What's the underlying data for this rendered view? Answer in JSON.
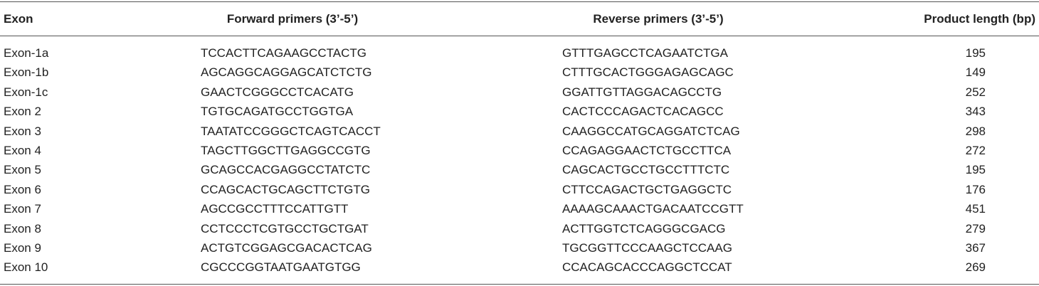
{
  "table": {
    "header": [
      "Exon",
      "Forward primers (3’-5’)",
      "Reverse primers (3’-5’)",
      "Product length (bp)"
    ],
    "rows": [
      [
        "Exon-1a",
        "TCCACTTCAGAAGCCTACTG",
        "GTTTGAGCCTCAGAATCTGA",
        195
      ],
      [
        "Exon-1b",
        "AGCAGGCAGGAGCATCTCTG",
        "CTTTGCACTGGGAGAGCAGC",
        149
      ],
      [
        "Exon-1c",
        "GAACTCGGGCCTCACATG",
        "GGATTGTTAGGACAGCCTG",
        252
      ],
      [
        "Exon 2",
        "TGTGCAGATGCCTGGTGA",
        "CACTCCCAGACTCACAGCC",
        343
      ],
      [
        "Exon 3",
        "TAATATCCGGGCTCAGTCACCT",
        "CAAGGCCATGCAGGATCTCAG",
        298
      ],
      [
        "Exon 4",
        "TAGCTTGGCTTGAGGCCGTG",
        "CCAGAGGAACTCTGCCTTCA",
        272
      ],
      [
        "Exon 5",
        "GCAGCCACGAGGCCTATCTC",
        "CAGCACTGCCTGCCTTTCTC",
        195
      ],
      [
        "Exon 6",
        "CCAGCACTGCAGCTTCTGTG",
        "CTTCCAGACTGCTGAGGCTC",
        176
      ],
      [
        "Exon 7",
        "AGCCGCCTTTCCATTGTT",
        "AAAAGCAAACTGACAATCCGTT",
        451
      ],
      [
        "Exon 8",
        "CCTCCCTCGTGCCTGCTGAT",
        "ACTTGGTCTCAGGGCGACG",
        279
      ],
      [
        "Exon 9",
        "ACTGTCGGAGCGACACTCAG",
        "TGCGGTTCCCAAGCTCCAAG",
        367
      ],
      [
        "Exon 10",
        "CGCCCGGTAATGAATGTGG",
        "CCACAGCACCCAGGCTCCAT",
        269
      ]
    ]
  }
}
